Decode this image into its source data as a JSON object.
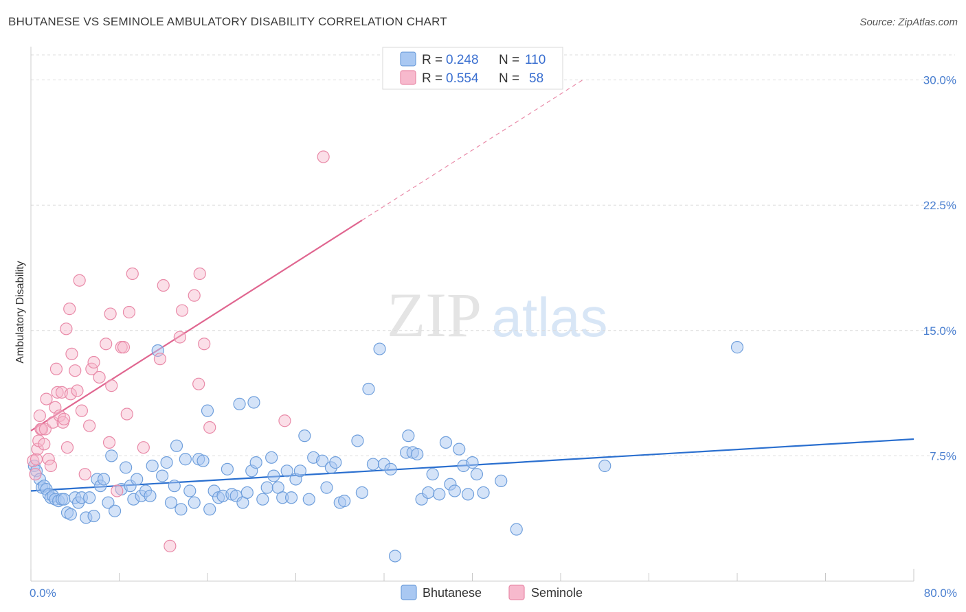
{
  "title": "BHUTANESE VS SEMINOLE AMBULATORY DISABILITY CORRELATION CHART",
  "source": "Source: ZipAtlas.com",
  "watermark": {
    "zip": "ZIP",
    "atlas": "atlas"
  },
  "colors": {
    "bhutanese_fill": "#a9c8f2",
    "bhutanese_stroke": "#6f9fdc",
    "bhutanese_line": "#2a6fcf",
    "seminole_fill": "#f7b9cd",
    "seminole_stroke": "#e98aa8",
    "seminole_line": "#e06690",
    "grid": "#dcdcdc",
    "tick_text": "#4a7fd0"
  },
  "legend": {
    "rows": [
      {
        "r_label": "R =",
        "r_value": "0.248",
        "n_label": "N =",
        "n_value": "110"
      },
      {
        "r_label": "R =",
        "r_value": "0.554",
        "n_label": "N =",
        "n_value": "58"
      }
    ]
  },
  "chart_data": {
    "type": "scatter",
    "title": "BHUTANESE VS SEMINOLE AMBULATORY DISABILITY CORRELATION CHART",
    "xlabel": "",
    "ylabel": "Ambulatory Disability",
    "xlim": [
      0,
      80
    ],
    "ylim": [
      0,
      31.5
    ],
    "x_tick_labels": [
      "0.0%",
      "80.0%"
    ],
    "y_ticks": [
      7.5,
      15.0,
      22.5,
      30.0
    ],
    "y_tick_labels": [
      "7.5%",
      "15.0%",
      "22.5%",
      "30.0%"
    ],
    "grid": "horizontal dashed",
    "legend_position": "top-center",
    "series": [
      {
        "name": "Bhutanese",
        "R": 0.248,
        "N": 110,
        "trend": {
          "x0": 0,
          "y0": 5.4,
          "x1": 80,
          "y1": 8.5
        },
        "points": [
          [
            0.3,
            6.9
          ],
          [
            0.5,
            6.6
          ],
          [
            0.8,
            6.1
          ],
          [
            1.0,
            5.6
          ],
          [
            1.2,
            5.7
          ],
          [
            1.4,
            5.5
          ],
          [
            1.6,
            5.2
          ],
          [
            1.8,
            5.0
          ],
          [
            2.0,
            5.1
          ],
          [
            2.2,
            4.9
          ],
          [
            2.5,
            4.8
          ],
          [
            2.8,
            4.9
          ],
          [
            3.0,
            4.9
          ],
          [
            3.3,
            4.1
          ],
          [
            3.6,
            4.0
          ],
          [
            4.0,
            5.0
          ],
          [
            4.3,
            4.7
          ],
          [
            4.6,
            5.0
          ],
          [
            5.0,
            3.8
          ],
          [
            5.3,
            5.0
          ],
          [
            5.7,
            3.9
          ],
          [
            6.0,
            6.1
          ],
          [
            6.3,
            5.7
          ],
          [
            6.6,
            6.1
          ],
          [
            7.0,
            4.7
          ],
          [
            7.3,
            7.5
          ],
          [
            7.6,
            4.2
          ],
          [
            8.2,
            5.5
          ],
          [
            8.6,
            6.8
          ],
          [
            9.0,
            5.7
          ],
          [
            9.3,
            4.9
          ],
          [
            9.6,
            6.1
          ],
          [
            10.0,
            5.1
          ],
          [
            10.4,
            5.4
          ],
          [
            10.8,
            5.1
          ],
          [
            11.0,
            6.9
          ],
          [
            11.5,
            13.8
          ],
          [
            11.9,
            6.3
          ],
          [
            12.3,
            7.1
          ],
          [
            12.7,
            4.7
          ],
          [
            13.0,
            5.7
          ],
          [
            13.2,
            8.1
          ],
          [
            13.6,
            4.3
          ],
          [
            14.0,
            7.3
          ],
          [
            14.4,
            5.4
          ],
          [
            14.8,
            4.7
          ],
          [
            15.2,
            7.3
          ],
          [
            15.6,
            7.2
          ],
          [
            16.0,
            10.2
          ],
          [
            16.2,
            4.3
          ],
          [
            16.6,
            5.4
          ],
          [
            17.0,
            5.0
          ],
          [
            17.4,
            5.1
          ],
          [
            17.8,
            6.7
          ],
          [
            18.2,
            5.2
          ],
          [
            18.6,
            5.1
          ],
          [
            18.9,
            10.6
          ],
          [
            19.2,
            4.7
          ],
          [
            19.6,
            5.3
          ],
          [
            20.0,
            6.6
          ],
          [
            20.2,
            10.7
          ],
          [
            20.4,
            7.1
          ],
          [
            21.0,
            4.9
          ],
          [
            21.4,
            5.6
          ],
          [
            21.8,
            7.4
          ],
          [
            22.0,
            6.3
          ],
          [
            22.4,
            5.6
          ],
          [
            22.8,
            5.0
          ],
          [
            23.2,
            6.6
          ],
          [
            23.6,
            5.0
          ],
          [
            24.0,
            6.1
          ],
          [
            24.4,
            6.6
          ],
          [
            24.8,
            8.7
          ],
          [
            25.2,
            4.9
          ],
          [
            25.6,
            7.4
          ],
          [
            26.4,
            7.2
          ],
          [
            26.8,
            5.6
          ],
          [
            27.2,
            6.8
          ],
          [
            27.6,
            7.1
          ],
          [
            28.0,
            4.7
          ],
          [
            28.4,
            4.8
          ],
          [
            29.6,
            8.4
          ],
          [
            30.0,
            5.3
          ],
          [
            30.6,
            11.5
          ],
          [
            31.0,
            7.0
          ],
          [
            31.6,
            13.9
          ],
          [
            32.0,
            7.0
          ],
          [
            32.6,
            6.7
          ],
          [
            33.0,
            1.5
          ],
          [
            34.0,
            7.7
          ],
          [
            34.2,
            8.7
          ],
          [
            34.6,
            7.7
          ],
          [
            35.0,
            7.6
          ],
          [
            35.4,
            4.9
          ],
          [
            36.0,
            5.3
          ],
          [
            36.4,
            6.4
          ],
          [
            37.0,
            5.2
          ],
          [
            37.6,
            8.3
          ],
          [
            38.0,
            5.8
          ],
          [
            38.4,
            5.4
          ],
          [
            38.8,
            7.9
          ],
          [
            39.2,
            6.9
          ],
          [
            39.6,
            5.2
          ],
          [
            40.0,
            7.1
          ],
          [
            40.4,
            6.4
          ],
          [
            41.0,
            5.3
          ],
          [
            42.6,
            6.0
          ],
          [
            44.0,
            3.1
          ],
          [
            52.0,
            6.9
          ],
          [
            64.0,
            14.0
          ]
        ]
      },
      {
        "name": "Seminole",
        "R": 0.554,
        "N": 58,
        "trend": {
          "x0": 0,
          "y0": 9.0,
          "x1": 30,
          "y1": 21.6
        },
        "trend_extension": {
          "x0": 30,
          "y0": 21.6,
          "x1": 50,
          "y1": 30.0
        },
        "points": [
          [
            0.2,
            7.2
          ],
          [
            0.4,
            6.4
          ],
          [
            0.5,
            7.3
          ],
          [
            0.6,
            7.9
          ],
          [
            0.7,
            8.4
          ],
          [
            0.8,
            9.9
          ],
          [
            0.9,
            9.1
          ],
          [
            1.0,
            9.1
          ],
          [
            1.2,
            8.2
          ],
          [
            1.3,
            9.1
          ],
          [
            1.4,
            10.9
          ],
          [
            1.6,
            7.3
          ],
          [
            1.8,
            6.9
          ],
          [
            2.0,
            9.5
          ],
          [
            2.2,
            10.4
          ],
          [
            2.3,
            12.7
          ],
          [
            2.4,
            11.3
          ],
          [
            2.6,
            9.9
          ],
          [
            2.8,
            11.3
          ],
          [
            2.9,
            9.5
          ],
          [
            3.0,
            9.7
          ],
          [
            3.2,
            15.1
          ],
          [
            3.3,
            8.0
          ],
          [
            3.5,
            16.3
          ],
          [
            3.6,
            11.2
          ],
          [
            3.7,
            13.6
          ],
          [
            4.0,
            12.6
          ],
          [
            4.2,
            11.4
          ],
          [
            4.4,
            18.0
          ],
          [
            4.6,
            10.2
          ],
          [
            4.9,
            6.4
          ],
          [
            5.3,
            9.3
          ],
          [
            5.5,
            12.7
          ],
          [
            5.7,
            13.1
          ],
          [
            6.2,
            12.2
          ],
          [
            6.8,
            14.2
          ],
          [
            7.1,
            8.3
          ],
          [
            7.2,
            16.0
          ],
          [
            7.3,
            11.7
          ],
          [
            7.8,
            5.4
          ],
          [
            8.2,
            14.0
          ],
          [
            8.4,
            14.0
          ],
          [
            8.7,
            10.0
          ],
          [
            8.9,
            16.1
          ],
          [
            9.2,
            18.4
          ],
          [
            10.2,
            8.0
          ],
          [
            11.7,
            13.3
          ],
          [
            12.0,
            17.7
          ],
          [
            12.6,
            2.1
          ],
          [
            13.5,
            14.6
          ],
          [
            13.7,
            16.2
          ],
          [
            14.8,
            17.1
          ],
          [
            15.2,
            11.8
          ],
          [
            15.3,
            18.4
          ],
          [
            15.7,
            14.2
          ],
          [
            16.2,
            9.2
          ],
          [
            23.0,
            9.6
          ],
          [
            26.5,
            25.4
          ]
        ]
      }
    ]
  },
  "bottom_legend": [
    {
      "label": "Bhutanese"
    },
    {
      "label": "Seminole"
    }
  ]
}
